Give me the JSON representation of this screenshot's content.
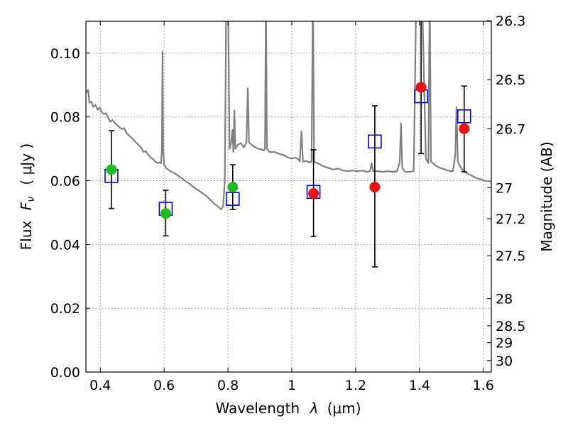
{
  "chart_data": {
    "type": "scatter",
    "xlabel_prefix": "Wavelength",
    "xlabel_symbol": "λ",
    "xlabel_unit": "(μm)",
    "ylabel_left_prefix": "Flux",
    "ylabel_left_symbol": "F",
    "ylabel_left_sub": "ν",
    "ylabel_left_unit": "( μJy )",
    "ylabel_right": "Magnitude (AB)",
    "xlim": [
      0.355,
      1.625
    ],
    "ylim": [
      0.0,
      0.11
    ],
    "grid": true,
    "x_ticks": [
      0.4,
      0.6,
      0.8,
      1.0,
      1.2,
      1.4,
      1.6
    ],
    "x_tick_labels": [
      "0.4",
      "0.6",
      "0.8",
      "1",
      "1.2",
      "1.4",
      "1.6"
    ],
    "y_ticks": [
      0.0,
      0.02,
      0.04,
      0.06,
      0.08,
      0.1
    ],
    "y_tick_labels": [
      "0.00",
      "0.02",
      "0.04",
      "0.06",
      "0.08",
      "0.10"
    ],
    "right_ticks": [
      {
        "label": "26.3",
        "flux": 0.1102
      },
      {
        "label": "26.5",
        "flux": 0.0917
      },
      {
        "label": "26.7",
        "flux": 0.0763
      },
      {
        "label": "27",
        "flux": 0.0578
      },
      {
        "label": "27.2",
        "flux": 0.0481
      },
      {
        "label": "27.5",
        "flux": 0.0365
      },
      {
        "label": "28",
        "flux": 0.023
      },
      {
        "label": "28.5",
        "flux": 0.0145
      },
      {
        "label": "29",
        "flux": 0.0092
      },
      {
        "label": "30",
        "flux": 0.0036
      }
    ],
    "colors": {
      "model": "#808080",
      "model_photometry": "#0000cc",
      "optical_detections": "#22bb22",
      "nir_detections": "#ee1111",
      "errorbars": "#000000"
    },
    "model_spectrum": [
      [
        0.355,
        0.0875
      ],
      [
        0.362,
        0.0885
      ],
      [
        0.366,
        0.0845
      ],
      [
        0.372,
        0.0848
      ],
      [
        0.378,
        0.0832
      ],
      [
        0.385,
        0.0838
      ],
      [
        0.392,
        0.0822
      ],
      [
        0.398,
        0.083
      ],
      [
        0.405,
        0.0815
      ],
      [
        0.412,
        0.0808
      ],
      [
        0.418,
        0.0812
      ],
      [
        0.425,
        0.0798
      ],
      [
        0.432,
        0.0785
      ],
      [
        0.438,
        0.079
      ],
      [
        0.445,
        0.0782
      ],
      [
        0.452,
        0.0775
      ],
      [
        0.46,
        0.0768
      ],
      [
        0.468,
        0.0762
      ],
      [
        0.475,
        0.0765
      ],
      [
        0.482,
        0.075
      ],
      [
        0.49,
        0.0742
      ],
      [
        0.498,
        0.0735
      ],
      [
        0.505,
        0.0728
      ],
      [
        0.512,
        0.072
      ],
      [
        0.52,
        0.0712
      ],
      [
        0.528,
        0.0705
      ],
      [
        0.535,
        0.069
      ],
      [
        0.542,
        0.0693
      ],
      [
        0.55,
        0.0682
      ],
      [
        0.558,
        0.0672
      ],
      [
        0.565,
        0.0668
      ],
      [
        0.572,
        0.066
      ],
      [
        0.58,
        0.0655
      ],
      [
        0.586,
        0.0658
      ],
      [
        0.59,
        0.0655
      ],
      [
        0.593,
        0.0695
      ],
      [
        0.595,
        0.1005
      ],
      [
        0.597,
        0.07
      ],
      [
        0.6,
        0.065
      ],
      [
        0.608,
        0.0638
      ],
      [
        0.62,
        0.063
      ],
      [
        0.635,
        0.0622
      ],
      [
        0.65,
        0.0612
      ],
      [
        0.665,
        0.06
      ],
      [
        0.68,
        0.059
      ],
      [
        0.695,
        0.0578
      ],
      [
        0.71,
        0.0568
      ],
      [
        0.725,
        0.0558
      ],
      [
        0.74,
        0.0545
      ],
      [
        0.755,
        0.053
      ],
      [
        0.77,
        0.0518
      ],
      [
        0.778,
        0.051
      ],
      [
        0.785,
        0.052
      ],
      [
        0.79,
        0.06
      ],
      [
        0.795,
        0.12
      ],
      [
        0.8,
        0.12
      ],
      [
        0.805,
        0.07
      ],
      [
        0.81,
        0.072
      ],
      [
        0.814,
        0.076
      ],
      [
        0.817,
        0.069
      ],
      [
        0.82,
        0.082
      ],
      [
        0.823,
        0.07
      ],
      [
        0.83,
        0.0712
      ],
      [
        0.84,
        0.0718
      ],
      [
        0.85,
        0.0705
      ],
      [
        0.858,
        0.072
      ],
      [
        0.862,
        0.089
      ],
      [
        0.866,
        0.072
      ],
      [
        0.875,
        0.0712
      ],
      [
        0.885,
        0.0705
      ],
      [
        0.895,
        0.07
      ],
      [
        0.905,
        0.0698
      ],
      [
        0.912,
        0.0695
      ],
      [
        0.916,
        0.07
      ],
      [
        0.919,
        0.12
      ],
      [
        0.922,
        0.07
      ],
      [
        0.93,
        0.069
      ],
      [
        0.945,
        0.069
      ],
      [
        0.96,
        0.0685
      ],
      [
        0.975,
        0.068
      ],
      [
        0.99,
        0.0672
      ],
      [
        1.0,
        0.067
      ],
      [
        1.01,
        0.0672
      ],
      [
        1.02,
        0.0668
      ],
      [
        1.025,
        0.066
      ],
      [
        1.03,
        0.0755
      ],
      [
        1.035,
        0.066
      ],
      [
        1.045,
        0.0662
      ],
      [
        1.055,
        0.0658
      ],
      [
        1.062,
        0.066
      ],
      [
        1.066,
        0.12
      ],
      [
        1.07,
        0.066
      ],
      [
        1.08,
        0.0655
      ],
      [
        1.09,
        0.065
      ],
      [
        1.1,
        0.0645
      ],
      [
        1.115,
        0.064
      ],
      [
        1.13,
        0.0635
      ],
      [
        1.145,
        0.0638
      ],
      [
        1.16,
        0.0632
      ],
      [
        1.175,
        0.063
      ],
      [
        1.19,
        0.0632
      ],
      [
        1.205,
        0.063
      ],
      [
        1.22,
        0.0632
      ],
      [
        1.235,
        0.0628
      ],
      [
        1.245,
        0.063
      ],
      [
        1.25,
        0.0655
      ],
      [
        1.255,
        0.063
      ],
      [
        1.27,
        0.063
      ],
      [
        1.285,
        0.0628
      ],
      [
        1.3,
        0.063
      ],
      [
        1.315,
        0.0628
      ],
      [
        1.33,
        0.063
      ],
      [
        1.338,
        0.066
      ],
      [
        1.342,
        0.078
      ],
      [
        1.346,
        0.064
      ],
      [
        1.355,
        0.0628
      ],
      [
        1.37,
        0.0628
      ],
      [
        1.382,
        0.063
      ],
      [
        1.386,
        0.09
      ],
      [
        1.39,
        0.12
      ],
      [
        1.4,
        0.12
      ],
      [
        1.41,
        0.11
      ],
      [
        1.42,
        0.067
      ],
      [
        1.428,
        0.0655
      ],
      [
        1.432,
        0.12
      ],
      [
        1.436,
        0.066
      ],
      [
        1.45,
        0.0648
      ],
      [
        1.465,
        0.064
      ],
      [
        1.48,
        0.0635
      ],
      [
        1.495,
        0.063
      ],
      [
        1.505,
        0.063
      ],
      [
        1.512,
        0.068
      ],
      [
        1.516,
        0.083
      ],
      [
        1.52,
        0.066
      ],
      [
        1.53,
        0.064
      ],
      [
        1.545,
        0.0625
      ],
      [
        1.56,
        0.0618
      ],
      [
        1.575,
        0.061
      ],
      [
        1.59,
        0.0605
      ],
      [
        1.605,
        0.06
      ],
      [
        1.625,
        0.0598
      ]
    ],
    "model_photometry": [
      {
        "x": 0.435,
        "y": 0.0615
      },
      {
        "x": 0.605,
        "y": 0.0512
      },
      {
        "x": 0.815,
        "y": 0.0543
      },
      {
        "x": 1.068,
        "y": 0.0565
      },
      {
        "x": 1.26,
        "y": 0.0723
      },
      {
        "x": 1.405,
        "y": 0.0865
      },
      {
        "x": 1.54,
        "y": 0.0802
      }
    ],
    "optical_detections": [
      {
        "x": 0.435,
        "y": 0.0635
      },
      {
        "x": 0.605,
        "y": 0.0497
      },
      {
        "x": 0.815,
        "y": 0.058
      }
    ],
    "nir_detections": [
      {
        "x": 1.068,
        "y": 0.056
      },
      {
        "x": 1.26,
        "y": 0.058
      },
      {
        "x": 1.405,
        "y": 0.0893
      },
      {
        "x": 1.54,
        "y": 0.0763
      }
    ],
    "errorbars": [
      {
        "x": 0.435,
        "low": 0.0513,
        "high": 0.0757
      },
      {
        "x": 0.605,
        "low": 0.0427,
        "high": 0.057
      },
      {
        "x": 0.815,
        "low": 0.051,
        "high": 0.065
      },
      {
        "x": 1.068,
        "low": 0.0425,
        "high": 0.0697
      },
      {
        "x": 1.26,
        "low": 0.033,
        "high": 0.0835
      },
      {
        "x": 1.405,
        "low": 0.0685,
        "high": 0.1102
      },
      {
        "x": 1.54,
        "low": 0.0628,
        "high": 0.0897
      }
    ]
  }
}
